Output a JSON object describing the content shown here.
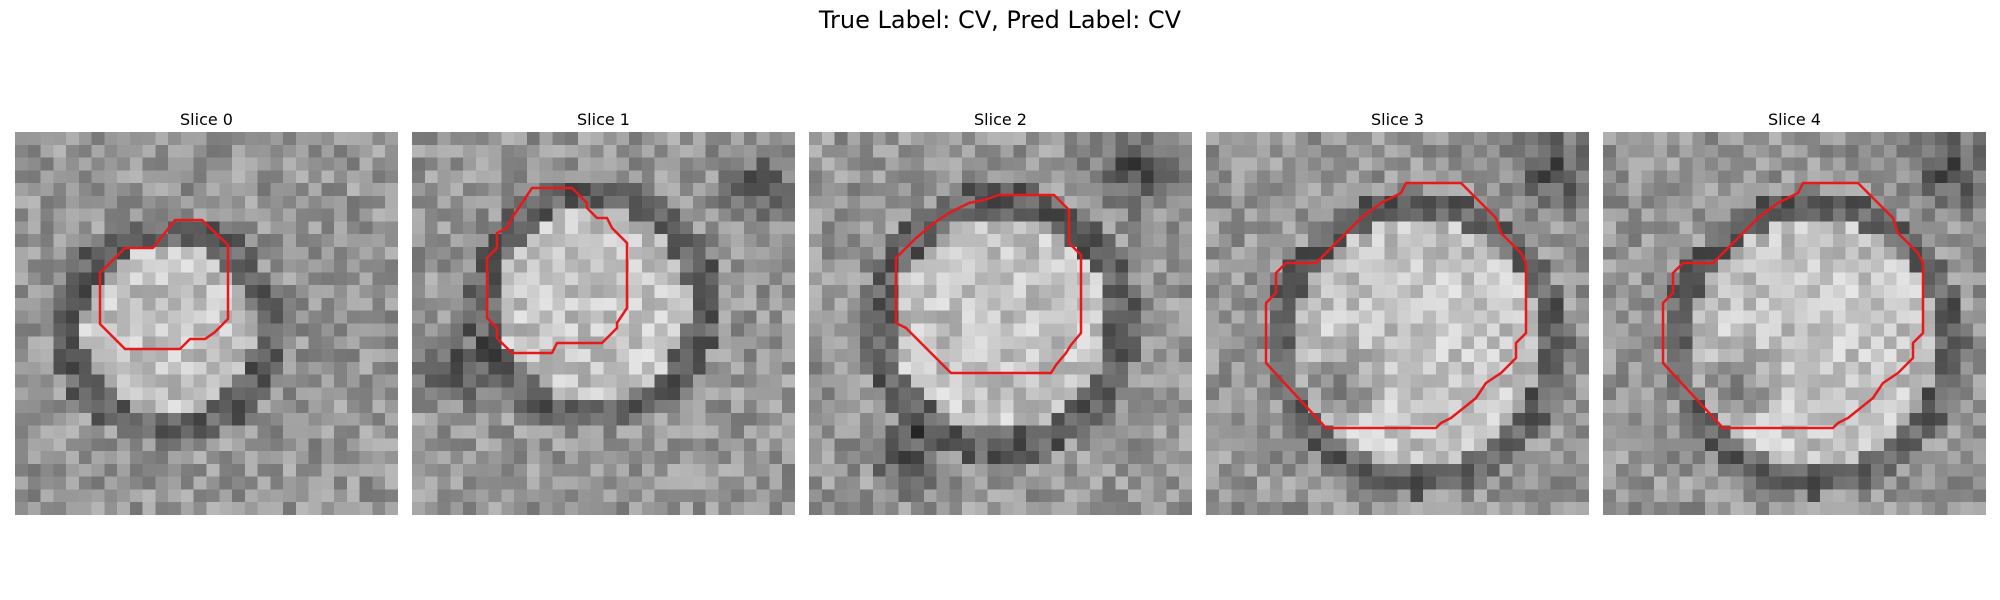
{
  "figure": {
    "title": "True Label: CV, Pred Label: CV",
    "panels": [
      {
        "title": "Slice 0"
      },
      {
        "title": "Slice 1"
      },
      {
        "title": "Slice 2"
      },
      {
        "title": "Slice 3"
      },
      {
        "title": "Slice 4"
      }
    ],
    "contour_color": "#e8181b",
    "colormap": "gray"
  }
}
